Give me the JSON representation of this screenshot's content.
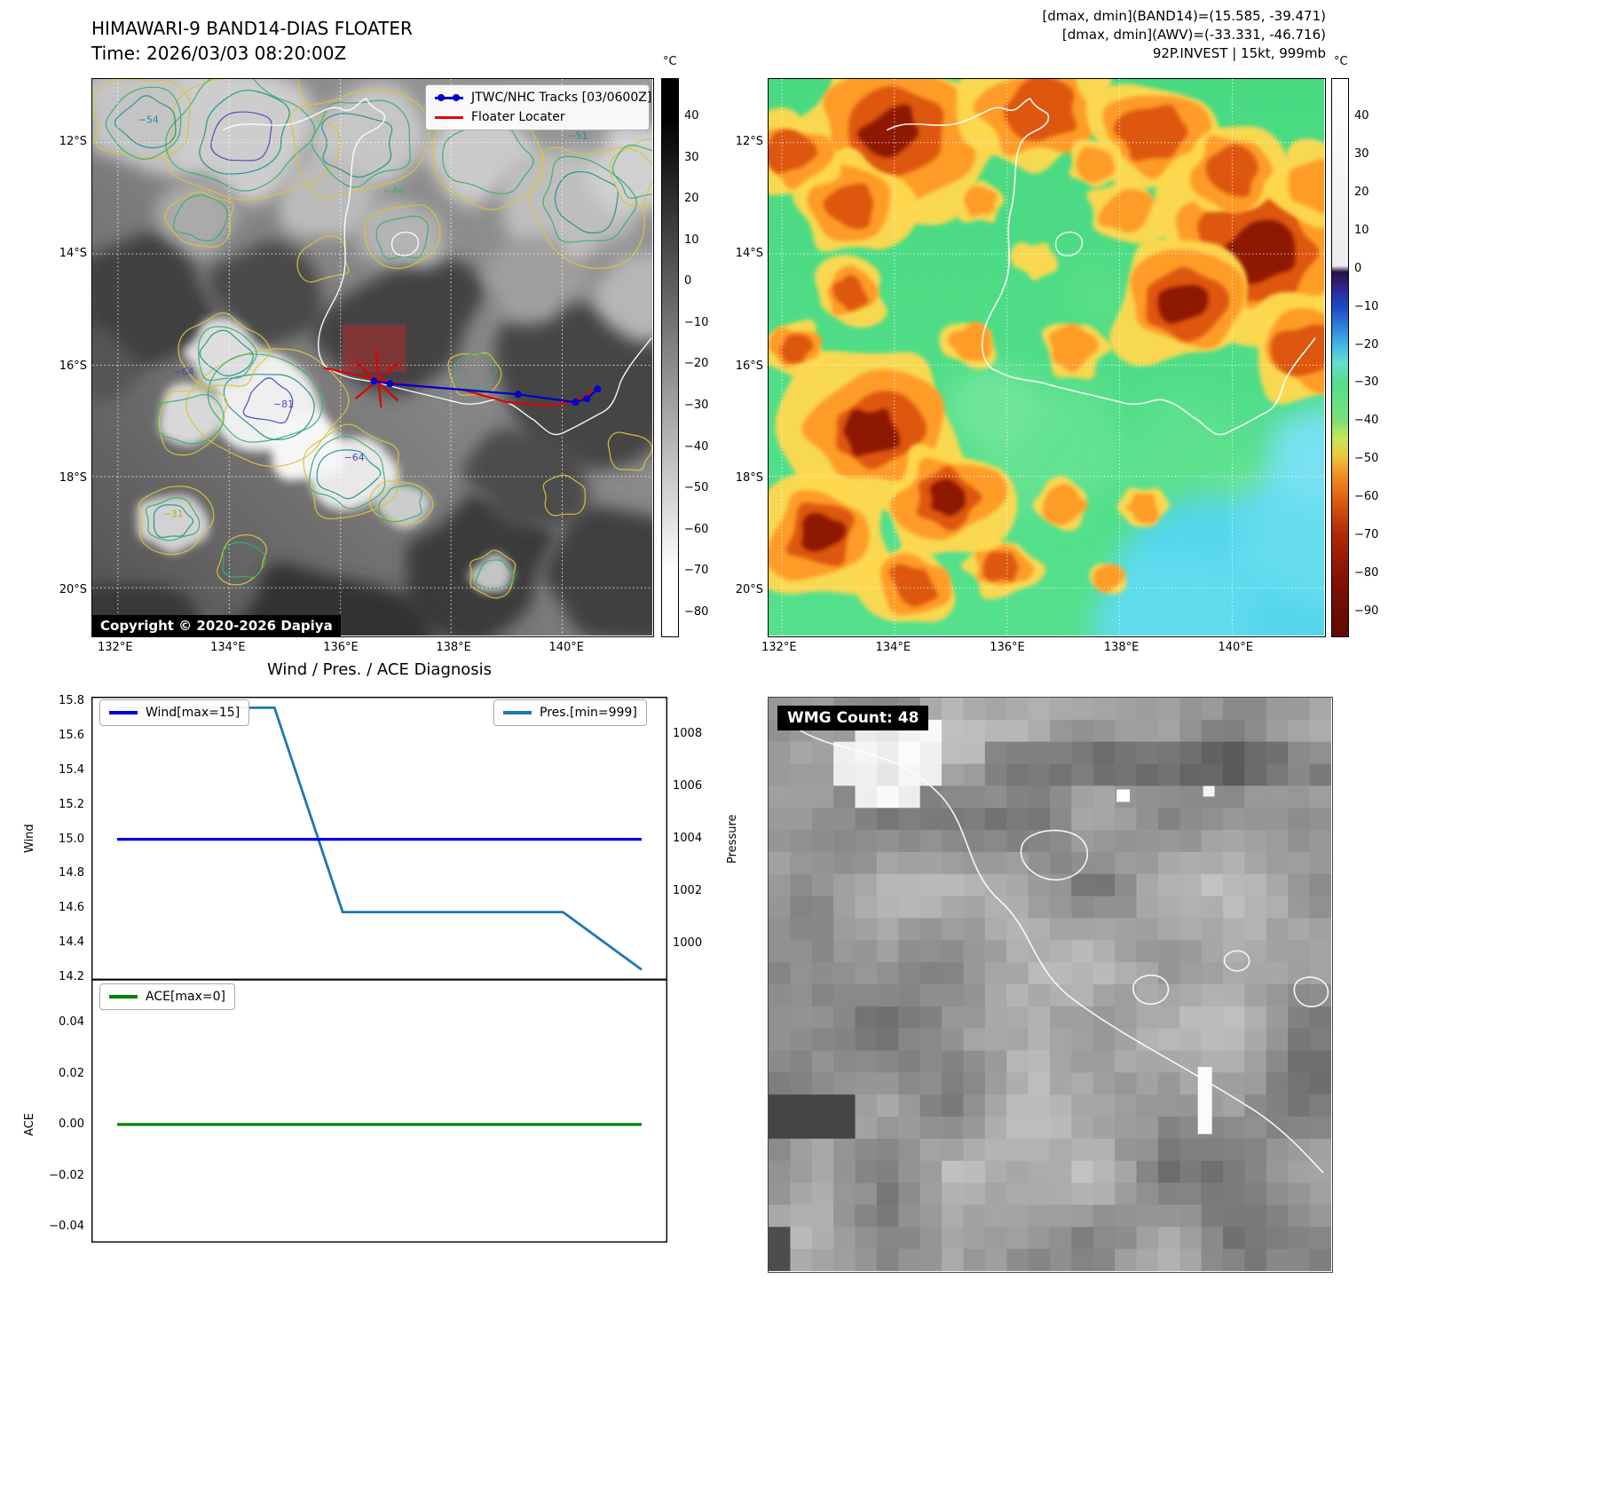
{
  "band14_panel": {
    "title": "HIMAWARI-9 BAND14-DIAS FLOATER",
    "time_label": "Time: 2026/03/03 08:20:00Z",
    "legend": {
      "tracks_label": "JTWC/NHC Tracks [03/0600Z]",
      "tracks_color": "#0000cc",
      "floater_label": "Floater Locater",
      "floater_color": "#e00000"
    },
    "copyright": "Copyright © 2020-2026 Dapiya",
    "colorbar_unit": "°C",
    "colorbar_ticks": [
      "40",
      "30",
      "20",
      "10",
      "0",
      "−10",
      "−20",
      "−30",
      "−40",
      "−50",
      "−60",
      "−70",
      "−80"
    ],
    "lat_ticks": [
      "12°S",
      "14°S",
      "16°S",
      "18°S",
      "20°S"
    ],
    "lon_ticks": [
      "132°E",
      "134°E",
      "136°E",
      "138°E",
      "140°E"
    ],
    "contour_labels": [
      "−54",
      "−44",
      "−51",
      "−64",
      "−81",
      "−64",
      "−31"
    ]
  },
  "awv_panel": {
    "header_lines": [
      "[dmax, dmin](BAND14)=(15.585, -39.471)",
      "[dmax, dmin](AWV)=(-33.331, -46.716)",
      "92P.INVEST | 15kt, 999mb"
    ],
    "colorbar_unit": "°C",
    "colorbar_ticks": [
      "40",
      "30",
      "20",
      "10",
      "0",
      "−10",
      "−20",
      "−30",
      "−40",
      "−50",
      "−60",
      "−70",
      "−80",
      "−90"
    ],
    "lat_ticks": [
      "12°S",
      "14°S",
      "16°S",
      "18°S",
      "20°S"
    ],
    "lon_ticks": [
      "132°E",
      "134°E",
      "136°E",
      "138°E",
      "140°E"
    ]
  },
  "wmg_panel": {
    "count_label": "WMG Count: 48"
  },
  "chart_data": [
    {
      "type": "line",
      "title": "Wind / Pres. / ACE Diagnosis",
      "subplot": "wind_pressure",
      "left_axis": {
        "label": "Wind",
        "tick_labels": [
          "15.8",
          "15.6",
          "15.4",
          "15.2",
          "15.0",
          "14.8",
          "14.6",
          "14.4",
          "14.2"
        ],
        "ylim": [
          14.185,
          15.826
        ]
      },
      "right_axis": {
        "label": "Pressure",
        "tick_labels": [
          "1008",
          "1006",
          "1004",
          "1002",
          "1000"
        ],
        "ylim": [
          998.61,
          1009.42
        ]
      },
      "series": [
        {
          "name": "Wind[max=15]",
          "axis": "left",
          "color": "#0000dd",
          "x_norm": [
            0,
            1
          ],
          "values": [
            15.0,
            15.0
          ]
        },
        {
          "name": "Pres.[min=999]",
          "axis": "right",
          "color": "#1f77b4",
          "x_norm": [
            0,
            0.3,
            0.43,
            0.85,
            1.0
          ],
          "values": [
            1009.0,
            1009.0,
            1001.2,
            1001.2,
            999.0
          ]
        }
      ],
      "legend_entries": [
        "Wind[max=15]",
        "Pres.[min=999]"
      ]
    },
    {
      "type": "line",
      "subplot": "ace",
      "left_axis": {
        "label": "ACE",
        "tick_labels": [
          "0.04",
          "0.02",
          "0.00",
          "−0.02",
          "−0.04"
        ],
        "ylim": [
          -0.0463,
          0.0567
        ]
      },
      "series": [
        {
          "name": "ACE[max=0]",
          "axis": "left",
          "color": "#008000",
          "x_norm": [
            0,
            1
          ],
          "values": [
            0.0,
            0.0
          ]
        }
      ],
      "legend_entries": [
        "ACE[max=0]"
      ]
    }
  ]
}
